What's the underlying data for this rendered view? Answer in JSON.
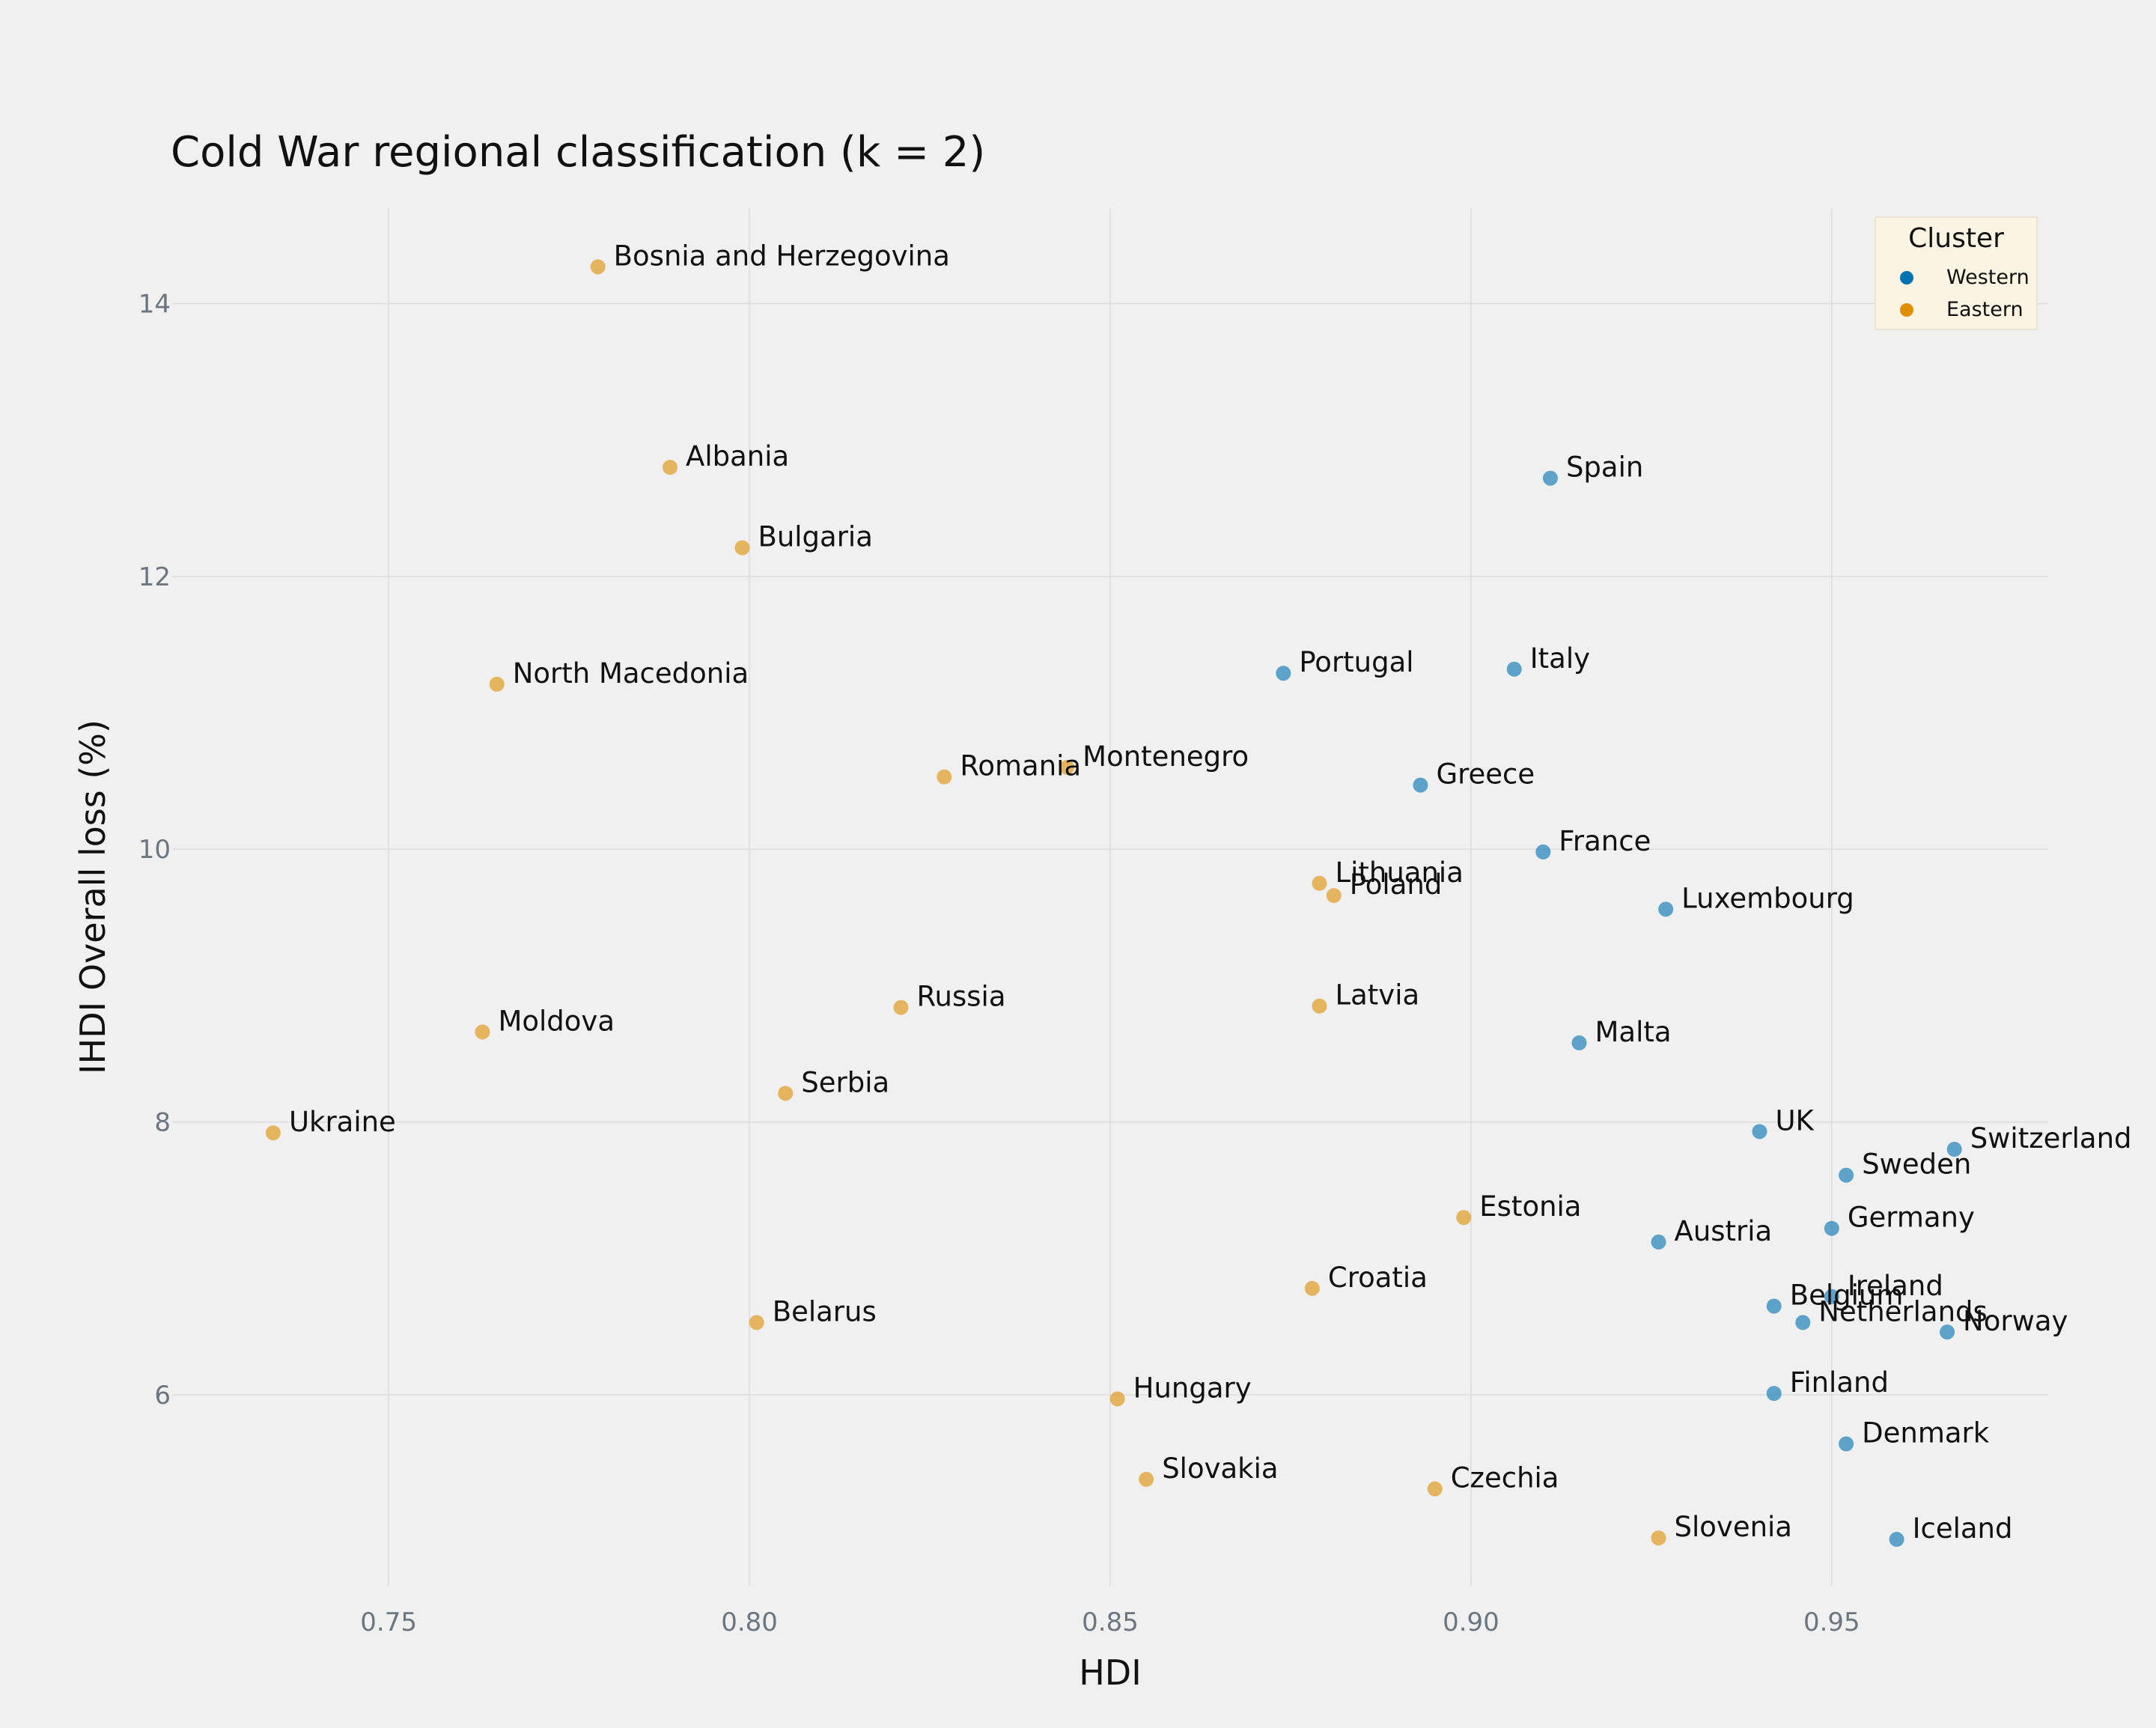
{
  "chart_data": {
    "type": "scatter",
    "title": "Cold War regional classification (k = 2)",
    "xlabel": "HDI",
    "ylabel": "IHDI Overall loss (%)",
    "xlim": [
      0.72,
      0.98
    ],
    "ylim": [
      4.6,
      14.7
    ],
    "xticks": [
      0.75,
      0.8,
      0.85,
      0.9,
      0.95
    ],
    "xtick_labels": [
      "0.75",
      "0.80",
      "0.85",
      "0.90",
      "0.95"
    ],
    "yticks": [
      6,
      8,
      10,
      12,
      14
    ],
    "ytick_labels": [
      "6",
      "8",
      "10",
      "12",
      "14"
    ],
    "grid": true,
    "legend": {
      "title": "Cluster",
      "placement": "top-right",
      "entries": [
        {
          "label": "Western",
          "color": "#0173b2"
        },
        {
          "label": "Eastern",
          "color": "#de8f05"
        }
      ]
    },
    "series": [
      {
        "name": "Western",
        "color": "#0173b2",
        "points": [
          {
            "label": "Spain",
            "x": 0.911,
            "y": 12.72
          },
          {
            "label": "Italy",
            "x": 0.906,
            "y": 11.32
          },
          {
            "label": "Portugal",
            "x": 0.874,
            "y": 11.29
          },
          {
            "label": "Greece",
            "x": 0.893,
            "y": 10.47
          },
          {
            "label": "France",
            "x": 0.91,
            "y": 9.98
          },
          {
            "label": "Luxembourg",
            "x": 0.927,
            "y": 9.56
          },
          {
            "label": "Malta",
            "x": 0.915,
            "y": 8.58
          },
          {
            "label": "UK",
            "x": 0.94,
            "y": 7.93
          },
          {
            "label": "Switzerland",
            "x": 0.967,
            "y": 7.8
          },
          {
            "label": "Sweden",
            "x": 0.952,
            "y": 7.61
          },
          {
            "label": "Germany",
            "x": 0.95,
            "y": 7.22
          },
          {
            "label": "Austria",
            "x": 0.926,
            "y": 7.12
          },
          {
            "label": "Ireland",
            "x": 0.95,
            "y": 6.72
          },
          {
            "label": "Belgium",
            "x": 0.942,
            "y": 6.65
          },
          {
            "label": "Netherlands",
            "x": 0.946,
            "y": 6.53
          },
          {
            "label": "Norway",
            "x": 0.966,
            "y": 6.46
          },
          {
            "label": "Finland",
            "x": 0.942,
            "y": 6.01
          },
          {
            "label": "Denmark",
            "x": 0.952,
            "y": 5.64
          },
          {
            "label": "Iceland",
            "x": 0.959,
            "y": 4.94
          }
        ]
      },
      {
        "name": "Eastern",
        "color": "#de8f05",
        "points": [
          {
            "label": "Bosnia and Herzegovina",
            "x": 0.779,
            "y": 14.27
          },
          {
            "label": "Albania",
            "x": 0.789,
            "y": 12.8
          },
          {
            "label": "Bulgaria",
            "x": 0.799,
            "y": 12.21
          },
          {
            "label": "North Macedonia",
            "x": 0.765,
            "y": 11.21
          },
          {
            "label": "Romania",
            "x": 0.827,
            "y": 10.53
          },
          {
            "label": "Montenegro",
            "x": 0.844,
            "y": 10.6
          },
          {
            "label": "Lithuania",
            "x": 0.879,
            "y": 9.75
          },
          {
            "label": "Poland",
            "x": 0.881,
            "y": 9.66
          },
          {
            "label": "Latvia",
            "x": 0.879,
            "y": 8.85
          },
          {
            "label": "Russia",
            "x": 0.821,
            "y": 8.84
          },
          {
            "label": "Moldova",
            "x": 0.763,
            "y": 8.66
          },
          {
            "label": "Serbia",
            "x": 0.805,
            "y": 8.21
          },
          {
            "label": "Ukraine",
            "x": 0.734,
            "y": 7.92
          },
          {
            "label": "Estonia",
            "x": 0.899,
            "y": 7.3
          },
          {
            "label": "Croatia",
            "x": 0.878,
            "y": 6.78
          },
          {
            "label": "Belarus",
            "x": 0.801,
            "y": 6.53
          },
          {
            "label": "Hungary",
            "x": 0.851,
            "y": 5.97
          },
          {
            "label": "Slovakia",
            "x": 0.855,
            "y": 5.38
          },
          {
            "label": "Czechia",
            "x": 0.895,
            "y": 5.31
          },
          {
            "label": "Slovenia",
            "x": 0.926,
            "y": 4.95
          }
        ]
      }
    ]
  }
}
